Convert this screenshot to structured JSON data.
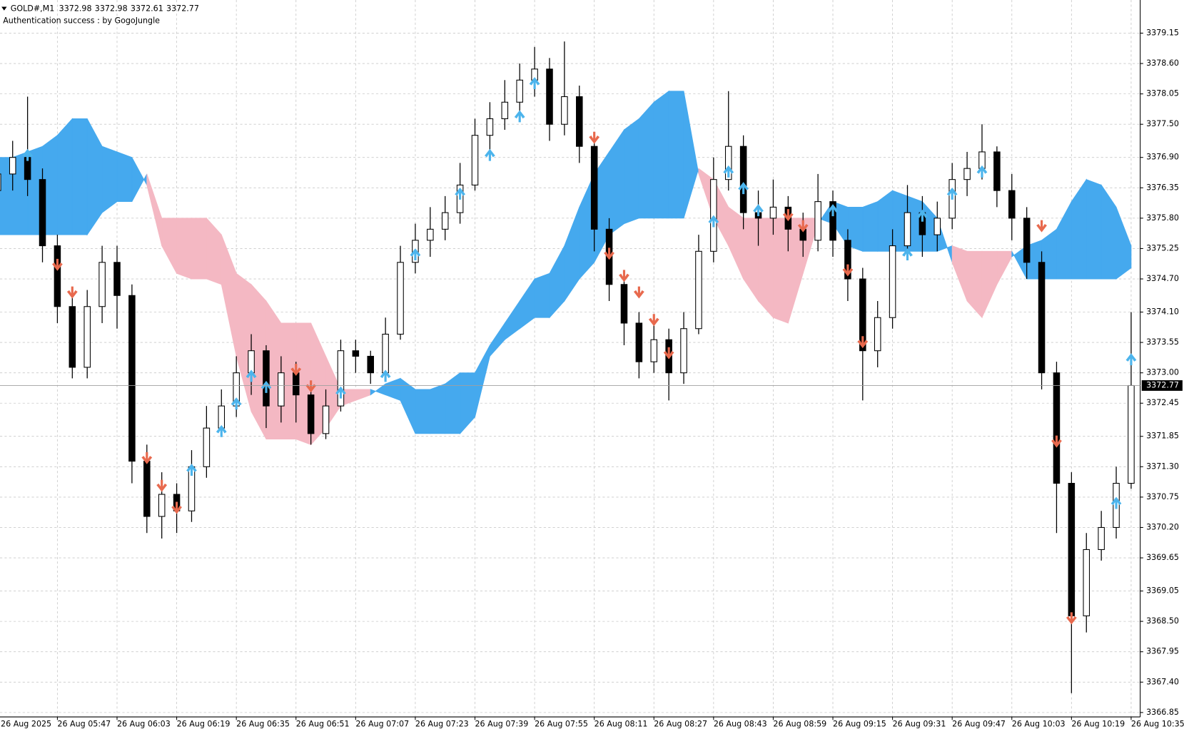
{
  "chart_data": {
    "type": "candlestick",
    "symbol": "GOLD#,M1",
    "header_values": [
      3372.98,
      3372.98,
      3372.61,
      3372.77
    ],
    "subtitle": "Authentication success : by GogoJungle",
    "categories": [
      "26 Aug 2025",
      null,
      null,
      null,
      "26 Aug 05:47",
      null,
      null,
      null,
      "26 Aug 06:03",
      null,
      null,
      null,
      "26 Aug 06:19",
      null,
      null,
      null,
      "26 Aug 06:35",
      null,
      null,
      null,
      "26 Aug 06:51",
      null,
      null,
      null,
      "26 Aug 07:07",
      null,
      null,
      null,
      "26 Aug 07:23",
      null,
      null,
      null,
      "26 Aug 07:39",
      null,
      null,
      null,
      "26 Aug 07:55",
      null,
      null,
      null,
      "26 Aug 08:11",
      null,
      null,
      null,
      "26 Aug 08:27",
      null,
      null,
      null,
      "26 Aug 08:43",
      null,
      null,
      null,
      "26 Aug 08:59",
      null,
      null,
      null,
      "26 Aug 09:15",
      null,
      null,
      null,
      "26 Aug 09:31",
      null,
      null,
      null,
      "26 Aug 09:47",
      null,
      null,
      null,
      "26 Aug 10:03",
      null,
      null,
      null,
      "26 Aug 10:19",
      null,
      null,
      null,
      "26 Aug 10:35"
    ],
    "open": [
      3376.3,
      3376.6,
      3376.9,
      3376.5,
      3375.3,
      3374.2,
      3373.1,
      3374.2,
      3375.0,
      3374.4,
      3371.4,
      3370.4,
      3370.8,
      3370.5,
      3371.3,
      3372.0,
      3372.4,
      3373.0,
      3373.4,
      3372.4,
      3373.0,
      3372.6,
      3371.9,
      3372.4,
      3373.4,
      3373.3,
      3373.0,
      3373.7,
      3375.0,
      3375.4,
      3375.6,
      3375.9,
      3376.4,
      3377.3,
      3377.6,
      3377.9,
      3378.3,
      3378.5,
      3377.5,
      3378.0,
      3377.1,
      3375.6,
      3374.6,
      3373.9,
      3373.2,
      3373.6,
      3373.0,
      3373.8,
      3375.2,
      3376.5,
      3377.1,
      3375.9,
      3375.8,
      3376.0,
      3375.6,
      3375.4,
      3376.1,
      3375.4,
      3374.7,
      3373.4,
      3374.0,
      3375.3,
      3375.9,
      3375.5,
      3375.8,
      3376.5,
      3376.7,
      3377.0,
      3376.3,
      3375.8,
      3375.0,
      3373.0,
      3371.0,
      3368.6,
      3369.8,
      3370.2,
      3371.0
    ],
    "high": [
      3376.9,
      3377.2,
      3378.0,
      3376.7,
      3375.5,
      3374.4,
      3374.5,
      3375.3,
      3375.3,
      3374.6,
      3371.7,
      3371.2,
      3371.0,
      3371.6,
      3372.4,
      3372.7,
      3373.3,
      3373.7,
      3373.5,
      3373.3,
      3373.2,
      3372.8,
      3372.7,
      3373.6,
      3373.6,
      3373.4,
      3374.0,
      3375.3,
      3375.7,
      3376.0,
      3376.2,
      3376.8,
      3377.6,
      3377.9,
      3378.3,
      3378.6,
      3378.9,
      3378.7,
      3379.0,
      3378.2,
      3377.3,
      3375.8,
      3374.8,
      3374.1,
      3374.0,
      3373.8,
      3374.1,
      3375.5,
      3376.9,
      3378.1,
      3377.3,
      3376.3,
      3376.5,
      3376.2,
      3375.9,
      3376.6,
      3376.3,
      3375.6,
      3374.9,
      3374.3,
      3375.6,
      3376.4,
      3376.2,
      3376.1,
      3376.8,
      3377.0,
      3377.5,
      3377.1,
      3376.6,
      3376.0,
      3375.2,
      3373.2,
      3371.2,
      3370.1,
      3370.5,
      3371.3,
      3374.1
    ],
    "low": [
      3376.0,
      3376.3,
      3376.2,
      3375.0,
      3373.9,
      3372.9,
      3372.9,
      3373.9,
      3373.8,
      3371.0,
      3370.1,
      3370.0,
      3370.1,
      3370.3,
      3371.1,
      3371.9,
      3372.2,
      3372.6,
      3372.0,
      3372.1,
      3372.1,
      3371.7,
      3371.8,
      3372.3,
      3373.0,
      3372.8,
      3372.9,
      3373.6,
      3374.8,
      3375.1,
      3375.4,
      3375.7,
      3376.3,
      3377.0,
      3377.4,
      3377.7,
      3378.0,
      3377.2,
      3377.3,
      3376.8,
      3375.2,
      3374.3,
      3373.5,
      3372.9,
      3373.0,
      3372.5,
      3372.8,
      3373.7,
      3375.0,
      3376.3,
      3375.6,
      3375.3,
      3375.5,
      3375.2,
      3375.1,
      3375.2,
      3375.1,
      3374.3,
      3372.5,
      3373.1,
      3373.8,
      3375.1,
      3375.1,
      3375.2,
      3375.6,
      3376.2,
      3376.5,
      3376.0,
      3375.4,
      3374.7,
      3372.7,
      3370.1,
      3367.2,
      3368.3,
      3369.6,
      3370.0,
      3370.9
    ],
    "close": [
      3376.6,
      3376.9,
      3376.5,
      3375.3,
      3374.2,
      3373.1,
      3374.2,
      3375.0,
      3374.4,
      3371.4,
      3370.4,
      3370.8,
      3370.5,
      3371.3,
      3372.0,
      3372.4,
      3373.0,
      3373.4,
      3372.4,
      3373.0,
      3372.6,
      3371.9,
      3372.4,
      3373.4,
      3373.3,
      3373.0,
      3373.7,
      3375.0,
      3375.4,
      3375.6,
      3375.9,
      3376.4,
      3377.3,
      3377.6,
      3377.9,
      3378.3,
      3378.5,
      3377.5,
      3378.0,
      3377.1,
      3375.6,
      3374.6,
      3373.9,
      3373.2,
      3373.6,
      3373.0,
      3373.8,
      3375.2,
      3376.5,
      3377.1,
      3375.9,
      3375.8,
      3376.0,
      3375.6,
      3375.4,
      3376.1,
      3375.4,
      3374.7,
      3373.4,
      3374.0,
      3375.3,
      3375.9,
      3375.5,
      3375.8,
      3376.5,
      3376.7,
      3377.0,
      3376.3,
      3375.8,
      3375.0,
      3373.0,
      3371.0,
      3368.6,
      3369.8,
      3370.2,
      3371.0,
      3372.77
    ],
    "candle_color": "#000000",
    "cloud": {
      "span_a": [
        3376.9,
        3376.9,
        3377.0,
        3377.1,
        3377.3,
        3377.6,
        3377.6,
        3377.1,
        3377.0,
        3376.9,
        3376.4,
        3375.3,
        3374.8,
        3374.7,
        3374.7,
        3374.6,
        3373.3,
        3372.3,
        3371.8,
        3371.8,
        3371.8,
        3371.7,
        3372.0,
        3372.4,
        3372.5,
        3372.6,
        3372.8,
        3372.9,
        3372.7,
        3372.7,
        3372.8,
        3373.0,
        3373.0,
        3373.5,
        3373.9,
        3374.3,
        3374.7,
        3374.8,
        3375.3,
        3376.0,
        3376.6,
        3377.0,
        3377.4,
        3377.6,
        3377.9,
        3378.1,
        3378.1,
        3376.6,
        3375.8,
        3375.3,
        3374.7,
        3374.3,
        3374.0,
        3373.9,
        3374.8,
        3375.7,
        3376.1,
        3376.0,
        3376.0,
        3376.1,
        3376.3,
        3376.2,
        3376.1,
        3375.8,
        3375.0,
        3374.3,
        3374.0,
        3374.6,
        3375.1,
        3375.3,
        3375.4,
        3375.6,
        3376.1,
        3376.5,
        3376.4,
        3376.0,
        3375.3
      ],
      "span_b": [
        3375.5,
        3375.5,
        3375.5,
        3375.5,
        3375.5,
        3375.5,
        3375.5,
        3375.9,
        3376.1,
        3376.1,
        3376.6,
        3375.8,
        3375.8,
        3375.8,
        3375.8,
        3375.5,
        3374.8,
        3374.6,
        3374.3,
        3373.9,
        3373.9,
        3373.9,
        3373.3,
        3372.7,
        3372.7,
        3372.7,
        3372.6,
        3372.5,
        3371.9,
        3371.9,
        3371.9,
        3371.9,
        3372.2,
        3373.3,
        3373.6,
        3373.8,
        3374.0,
        3374.0,
        3374.3,
        3374.7,
        3375.0,
        3375.5,
        3375.7,
        3375.8,
        3375.8,
        3375.8,
        3375.8,
        3376.7,
        3376.5,
        3376.0,
        3375.8,
        3375.8,
        3375.8,
        3375.8,
        3375.8,
        3375.8,
        3375.7,
        3375.3,
        3375.2,
        3375.2,
        3375.2,
        3375.2,
        3375.2,
        3375.2,
        3375.3,
        3375.2,
        3375.2,
        3375.2,
        3375.2,
        3374.7,
        3374.7,
        3374.7,
        3374.7,
        3374.7,
        3374.7,
        3374.7,
        3374.9
      ],
      "bull_color": "#45a9ee",
      "bear_color": "#f4b8c3"
    },
    "buy_signals": {
      "color": "#4cb4ec",
      "values": [
        null,
        null,
        3377.0,
        null,
        null,
        null,
        null,
        null,
        null,
        null,
        null,
        null,
        null,
        3371.3,
        null,
        3372.0,
        3372.5,
        3373.0,
        3372.8,
        null,
        null,
        null,
        null,
        3372.7,
        null,
        null,
        3373.0,
        null,
        3375.2,
        null,
        null,
        3376.3,
        null,
        3377.0,
        null,
        3377.7,
        3378.3,
        null,
        null,
        null,
        null,
        null,
        null,
        null,
        null,
        null,
        null,
        null,
        3375.8,
        3376.7,
        3376.4,
        3376.0,
        null,
        null,
        null,
        null,
        3376.0,
        null,
        null,
        null,
        null,
        3375.2,
        3375.9,
        null,
        3376.3,
        null,
        3376.7,
        null,
        null,
        null,
        null,
        null,
        null,
        null,
        null,
        3370.7,
        3373.3
      ]
    },
    "sell_signals": {
      "color": "#e8694d",
      "values": [
        null,
        null,
        null,
        null,
        3374.9,
        3374.4,
        null,
        null,
        null,
        null,
        3371.4,
        3370.9,
        3370.5,
        null,
        null,
        null,
        null,
        null,
        null,
        null,
        3373.0,
        3372.7,
        null,
        null,
        null,
        null,
        null,
        null,
        null,
        null,
        null,
        null,
        null,
        null,
        null,
        null,
        null,
        null,
        null,
        null,
        3377.2,
        3375.1,
        3374.7,
        3374.4,
        3373.9,
        3373.3,
        null,
        null,
        null,
        null,
        null,
        null,
        null,
        3375.8,
        3375.6,
        null,
        null,
        3374.8,
        3373.5,
        null,
        null,
        null,
        null,
        null,
        null,
        null,
        null,
        null,
        null,
        null,
        3375.6,
        3371.7,
        3368.5,
        null,
        null,
        null,
        null
      ]
    },
    "ylim": [
      3366.77,
      3379.75
    ],
    "yticks": [
      3379.15,
      {
        "value": 3378.6,
        "label": "3378.60"
      },
      3378.05,
      {
        "value": 3377.5,
        "label": "3377.50"
      },
      {
        "value": 3376.9,
        "label": "3376.90"
      },
      3376.35,
      {
        "value": 3375.8,
        "label": "3375.80"
      },
      3375.25,
      {
        "value": 3374.7,
        "label": "3374.70"
      },
      {
        "value": 3374.1,
        "label": "3374.10"
      },
      3373.55,
      {
        "value": 3373.0,
        "label": "3373.00"
      },
      3372.45,
      3371.85,
      {
        "value": 3371.3,
        "label": "3371.30"
      },
      3370.75,
      {
        "value": 3370.2,
        "label": "3370.20"
      },
      3369.65,
      3369.05,
      {
        "value": 3368.5,
        "label": "3368.50"
      },
      3367.95,
      {
        "value": 3367.4,
        "label": "3367.40"
      },
      3366.85
    ],
    "grid": true,
    "price_line": true
  }
}
